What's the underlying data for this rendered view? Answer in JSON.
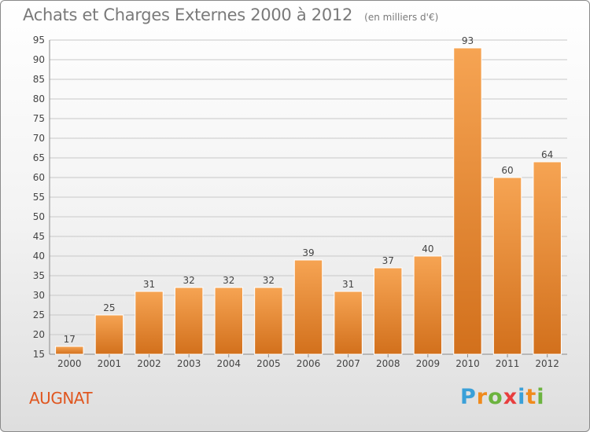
{
  "header": {
    "title": "Achats et Charges Externes 2000 à 2012",
    "subtitle": "(en milliers d'€)"
  },
  "footer": {
    "location": "AUGNAT",
    "brand_letters": [
      "P",
      "r",
      "o",
      "x",
      "i",
      "t",
      "i"
    ],
    "brand_colors": [
      "#3aa0d8",
      "#f08a1c",
      "#6cb33f",
      "#e83e3e",
      "#3aa0d8",
      "#f08a1c",
      "#6cb33f"
    ]
  },
  "colors": {
    "bar_light": "#f6a453",
    "bar_dark": "#d2701c",
    "grid": "#c8c8c8",
    "axis_text": "#444444"
  },
  "chart_data": {
    "type": "bar",
    "title": "Achats et Charges Externes 2000 à 2012",
    "subtitle": "(en milliers d'€)",
    "categories": [
      "2000",
      "2001",
      "2002",
      "2003",
      "2004",
      "2005",
      "2006",
      "2007",
      "2008",
      "2009",
      "2010",
      "2011",
      "2012"
    ],
    "values": [
      17,
      25,
      31,
      32,
      32,
      32,
      39,
      31,
      37,
      40,
      93,
      60,
      64
    ],
    "ylim": [
      15,
      95
    ],
    "yticks": [
      15,
      20,
      25,
      30,
      35,
      40,
      45,
      50,
      55,
      60,
      65,
      70,
      75,
      80,
      85,
      90,
      95
    ],
    "grid": true,
    "data_labels": true,
    "xlabel": "",
    "ylabel": ""
  }
}
